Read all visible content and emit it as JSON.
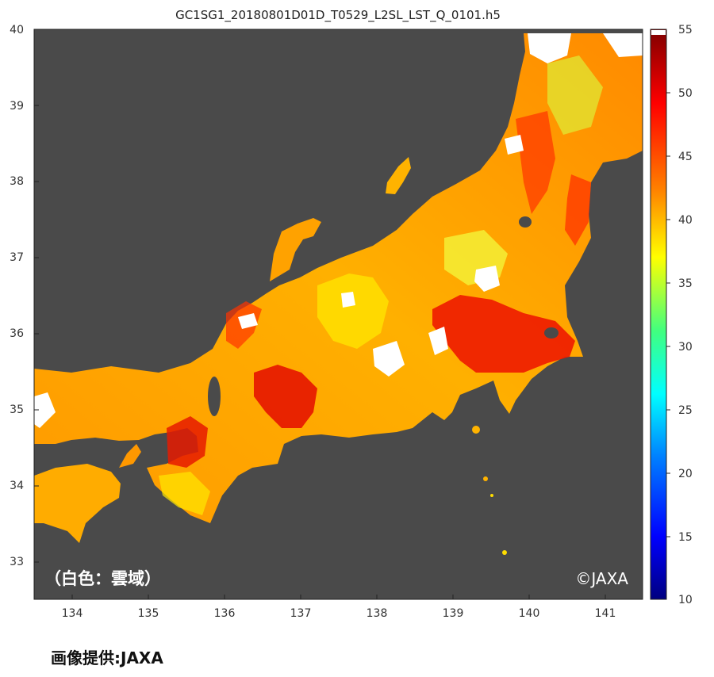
{
  "map": {
    "title": "GC1SG1_20180801D01D_T0529_L2SL_LST_Q_0101.h5",
    "cloud_note": "（白色：雲域）",
    "copyright": "©JAXA",
    "x_ticks": [
      "134",
      "135",
      "136",
      "137",
      "138",
      "139",
      "140",
      "141"
    ],
    "y_ticks": [
      "33",
      "34",
      "35",
      "36",
      "37",
      "38",
      "39",
      "40"
    ],
    "x_range": [
      133.5,
      141.5
    ],
    "y_range": [
      32.5,
      40
    ],
    "background_color": "#4a4a4a",
    "cloud_color": "#ffffff"
  },
  "colorbar": {
    "ticks": [
      "10",
      "15",
      "20",
      "25",
      "30",
      "35",
      "40",
      "45",
      "50",
      "55"
    ],
    "range": [
      10,
      55
    ],
    "colors": [
      "#00007f",
      "#0000ff",
      "#0080ff",
      "#00ffff",
      "#80ff80",
      "#ffff00",
      "#ff8000",
      "#ff0000",
      "#7f0000"
    ]
  },
  "footer": {
    "credit": "画像提供:JAXA"
  }
}
